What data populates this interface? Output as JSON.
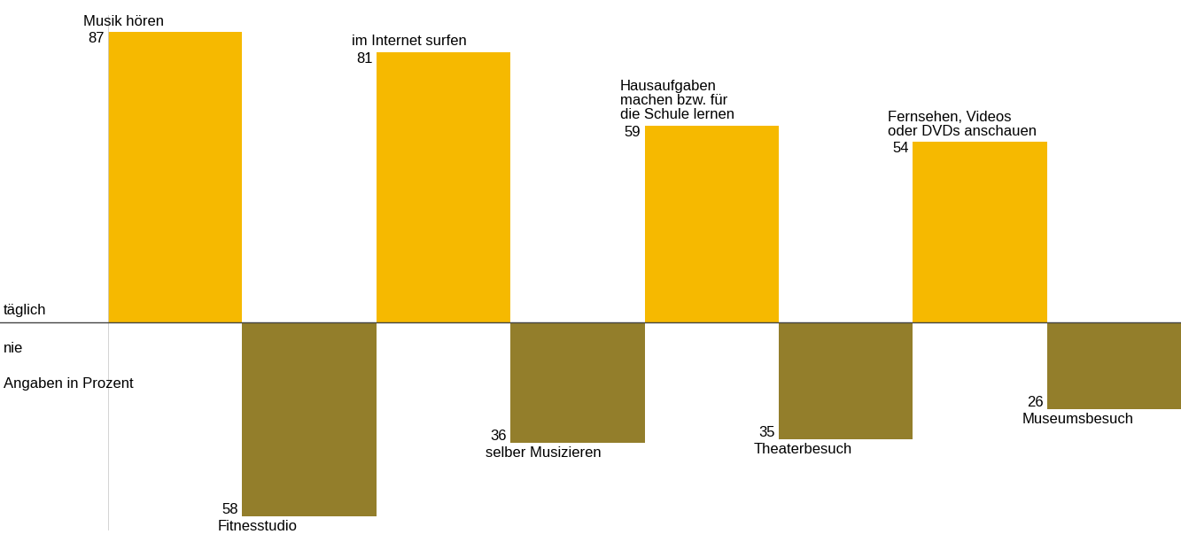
{
  "chart_data": [
    {
      "type": "bar",
      "title": "täglich",
      "categories": [
        "Musik hören",
        "im Internet surfen",
        "Hausaufgaben\nmachen bzw. für\ndie Schule lernen",
        "Fernsehen, Videos\noder DVDs anschauen"
      ],
      "values": [
        87,
        81,
        59,
        54
      ],
      "color": "#f6b900",
      "ylim": [
        0,
        92
      ],
      "data_labels": true,
      "tick_labels": false
    },
    {
      "type": "bar",
      "title": "nie",
      "subtitle": "Angaben in Prozent",
      "categories": [
        "Fitnesstudio",
        "selber Musizieren",
        "Theaterbesuch",
        "Museumsbesuch"
      ],
      "values": [
        58,
        36,
        35,
        26
      ],
      "color": "#937e2b",
      "ylim": [
        0,
        62
      ],
      "data_labels": true,
      "tick_labels": false
    }
  ]
}
